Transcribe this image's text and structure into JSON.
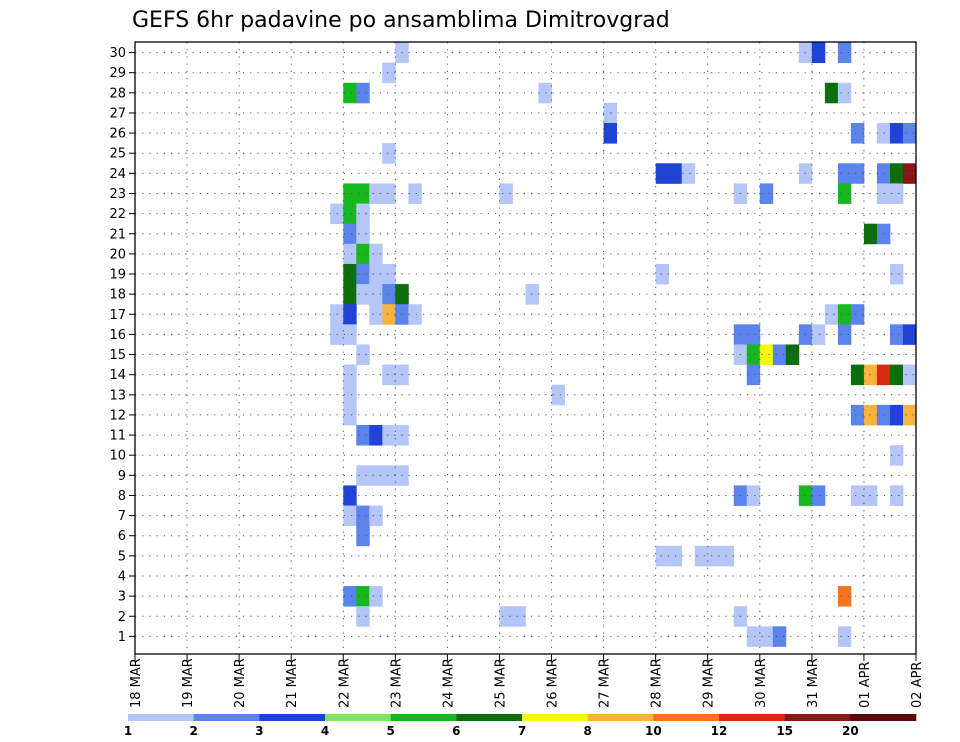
{
  "chart_data": {
    "type": "heatmap",
    "title": "GEFS 6hr padavine po ansamblima Dimitrovgrad",
    "xlabel": "",
    "ylabel": "",
    "x_tick_labels": [
      "18 MAR",
      "19 MAR",
      "20 MAR",
      "21 MAR",
      "22 MAR",
      "23 MAR",
      "24 MAR",
      "25 MAR",
      "26 MAR",
      "27 MAR",
      "28 MAR",
      "29 MAR",
      "30 MAR",
      "31 MAR",
      "01 APR",
      "02 APR"
    ],
    "y_tick_labels": [
      "1",
      "2",
      "3",
      "4",
      "5",
      "6",
      "7",
      "8",
      "9",
      "10",
      "11",
      "12",
      "13",
      "14",
      "15",
      "16",
      "17",
      "18",
      "19",
      "20",
      "21",
      "22",
      "23",
      "24",
      "25",
      "26",
      "27",
      "28",
      "29",
      "30"
    ],
    "time_range": [
      "18 MAR 00Z",
      "02 APR 00Z"
    ],
    "member_range": [
      0,
      30
    ],
    "grid": "dotted",
    "colorbar": {
      "position": "bottom",
      "tick_labels": [
        "1",
        "2",
        "3",
        "4",
        "5",
        "6",
        "7",
        "8",
        "10",
        "12",
        "15",
        "20"
      ],
      "colors": [
        "#b4c6f8",
        "#5b83ec",
        "#1f43d6",
        "#7de65e",
        "#17b81d",
        "#0d6e0d",
        "#f7f70a",
        "#f7b33e",
        "#f5741d",
        "#d92a10",
        "#8b1616",
        "#5a0a0a"
      ]
    },
    "cells_note": "each cell: [day offset from 18 MAR 00Z (6h steps = 0.25), ensemble member, colour class 0-11]",
    "cells": [
      [
        5.0,
        30,
        0
      ],
      [
        12.75,
        30,
        0
      ],
      [
        13.0,
        30,
        2
      ],
      [
        13.5,
        30,
        1
      ],
      [
        4.75,
        29,
        0
      ],
      [
        4.0,
        28,
        4
      ],
      [
        4.25,
        28,
        1
      ],
      [
        7.75,
        28,
        0
      ],
      [
        13.25,
        28,
        5
      ],
      [
        13.5,
        28,
        0
      ],
      [
        9.0,
        27,
        0
      ],
      [
        9.0,
        26,
        2
      ],
      [
        13.75,
        26,
        1
      ],
      [
        14.25,
        26,
        0
      ],
      [
        14.5,
        26,
        2
      ],
      [
        14.75,
        26,
        1
      ],
      [
        4.75,
        25,
        0
      ],
      [
        10.0,
        24,
        2
      ],
      [
        10.25,
        24,
        2
      ],
      [
        10.5,
        24,
        0
      ],
      [
        12.75,
        24,
        0
      ],
      [
        13.5,
        24,
        1
      ],
      [
        13.75,
        24,
        1
      ],
      [
        14.25,
        24,
        1
      ],
      [
        14.5,
        24,
        5
      ],
      [
        14.75,
        24,
        10
      ],
      [
        4.0,
        23,
        4
      ],
      [
        4.25,
        23,
        4
      ],
      [
        4.5,
        23,
        0
      ],
      [
        4.75,
        23,
        0
      ],
      [
        5.25,
        23,
        0
      ],
      [
        7.0,
        23,
        0
      ],
      [
        11.5,
        23,
        0
      ],
      [
        12.0,
        23,
        1
      ],
      [
        13.5,
        23,
        4
      ],
      [
        14.25,
        23,
        0
      ],
      [
        14.5,
        23,
        0
      ],
      [
        3.75,
        22,
        0
      ],
      [
        4.0,
        22,
        4
      ],
      [
        4.25,
        22,
        0
      ],
      [
        4.0,
        21,
        1
      ],
      [
        4.25,
        21,
        0
      ],
      [
        14.0,
        21,
        5
      ],
      [
        14.25,
        21,
        1
      ],
      [
        4.0,
        20,
        0
      ],
      [
        4.25,
        20,
        4
      ],
      [
        4.5,
        20,
        0
      ],
      [
        4.0,
        19,
        5
      ],
      [
        4.25,
        19,
        1
      ],
      [
        4.5,
        19,
        0
      ],
      [
        4.75,
        19,
        0
      ],
      [
        10.0,
        19,
        0
      ],
      [
        14.5,
        19,
        0
      ],
      [
        4.0,
        18,
        5
      ],
      [
        4.25,
        18,
        0
      ],
      [
        4.5,
        18,
        0
      ],
      [
        4.75,
        18,
        1
      ],
      [
        5.0,
        18,
        5
      ],
      [
        7.5,
        18,
        0
      ],
      [
        3.75,
        17,
        0
      ],
      [
        4.0,
        17,
        2
      ],
      [
        4.5,
        17,
        0
      ],
      [
        4.75,
        17,
        7
      ],
      [
        5.0,
        17,
        1
      ],
      [
        5.25,
        17,
        0
      ],
      [
        13.25,
        17,
        0
      ],
      [
        13.5,
        17,
        4
      ],
      [
        13.75,
        17,
        1
      ],
      [
        3.75,
        16,
        0
      ],
      [
        4.0,
        16,
        0
      ],
      [
        11.5,
        16,
        1
      ],
      [
        11.75,
        16,
        1
      ],
      [
        12.75,
        16,
        1
      ],
      [
        13.0,
        16,
        0
      ],
      [
        13.5,
        16,
        1
      ],
      [
        14.5,
        16,
        1
      ],
      [
        14.75,
        16,
        2
      ],
      [
        4.25,
        15,
        0
      ],
      [
        11.5,
        15,
        0
      ],
      [
        11.75,
        15,
        4
      ],
      [
        12.0,
        15,
        6
      ],
      [
        12.25,
        15,
        1
      ],
      [
        12.5,
        15,
        5
      ],
      [
        4.0,
        14,
        0
      ],
      [
        4.75,
        14,
        0
      ],
      [
        5.0,
        14,
        0
      ],
      [
        11.75,
        14,
        1
      ],
      [
        13.75,
        14,
        5
      ],
      [
        14.0,
        14,
        7
      ],
      [
        14.25,
        14,
        9
      ],
      [
        14.5,
        14,
        5
      ],
      [
        14.75,
        14,
        0
      ],
      [
        4.0,
        13,
        0
      ],
      [
        8.0,
        13,
        0
      ],
      [
        4.0,
        12,
        0
      ],
      [
        13.75,
        12,
        1
      ],
      [
        14.0,
        12,
        7
      ],
      [
        14.25,
        12,
        1
      ],
      [
        14.5,
        12,
        2
      ],
      [
        14.75,
        12,
        7
      ],
      [
        4.25,
        11,
        1
      ],
      [
        4.5,
        11,
        2
      ],
      [
        4.75,
        11,
        0
      ],
      [
        5.0,
        11,
        0
      ],
      [
        14.5,
        10,
        0
      ],
      [
        4.25,
        9,
        0
      ],
      [
        4.5,
        9,
        0
      ],
      [
        4.75,
        9,
        0
      ],
      [
        5.0,
        9,
        0
      ],
      [
        4.0,
        8,
        2
      ],
      [
        11.5,
        8,
        1
      ],
      [
        11.75,
        8,
        0
      ],
      [
        12.75,
        8,
        4
      ],
      [
        13.0,
        8,
        1
      ],
      [
        13.75,
        8,
        0
      ],
      [
        14.0,
        8,
        0
      ],
      [
        14.5,
        8,
        0
      ],
      [
        4.0,
        7,
        0
      ],
      [
        4.25,
        7,
        1
      ],
      [
        4.5,
        7,
        0
      ],
      [
        4.25,
        6,
        1
      ],
      [
        10.0,
        5,
        0
      ],
      [
        10.25,
        5,
        0
      ],
      [
        10.75,
        5,
        0
      ],
      [
        11.0,
        5,
        0
      ],
      [
        11.25,
        5,
        0
      ],
      [
        4.0,
        3,
        1
      ],
      [
        4.25,
        3,
        4
      ],
      [
        4.5,
        3,
        0
      ],
      [
        13.5,
        3,
        8
      ],
      [
        4.25,
        2,
        0
      ],
      [
        7.0,
        2,
        0
      ],
      [
        7.25,
        2,
        0
      ],
      [
        11.5,
        2,
        0
      ],
      [
        11.75,
        1,
        0
      ],
      [
        12.0,
        1,
        0
      ],
      [
        12.25,
        1,
        1
      ],
      [
        13.5,
        1,
        0
      ]
    ]
  }
}
